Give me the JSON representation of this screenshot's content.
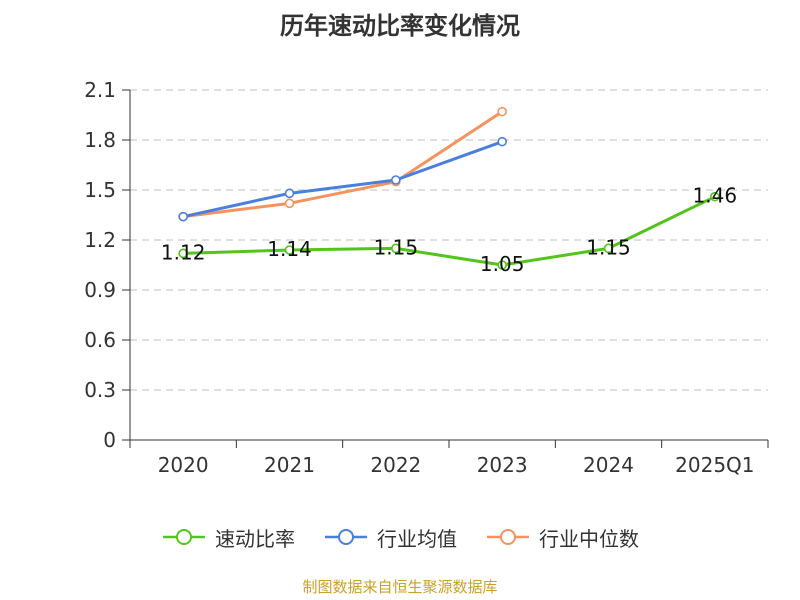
{
  "chart_data": {
    "type": "line",
    "title": "历年速动比率变化情况",
    "categories": [
      "2020",
      "2021",
      "2022",
      "2023",
      "2024",
      "2025Q1"
    ],
    "y_ticks": [
      "0",
      "0.3",
      "0.6",
      "0.9",
      "1.2",
      "1.5",
      "1.8",
      "2.1"
    ],
    "ylim": [
      0,
      2.1
    ],
    "grid": true,
    "legend_position": "bottom",
    "series": [
      {
        "name": "速动比率",
        "color": "#52c41a",
        "values": [
          1.12,
          1.14,
          1.15,
          1.05,
          1.15,
          1.46
        ],
        "labels": [
          "1.12",
          "1.14",
          "1.15",
          "1.05",
          "1.15",
          "1.46"
        ]
      },
      {
        "name": "行业均值",
        "color": "#4a7fdc",
        "values": [
          1.34,
          1.48,
          1.56,
          1.79,
          null,
          null
        ]
      },
      {
        "name": "行业中位数",
        "color": "#f4935e",
        "values": [
          1.34,
          1.42,
          1.55,
          1.97,
          null,
          null
        ]
      }
    ]
  },
  "source": "制图数据来自恒生聚源数据库"
}
